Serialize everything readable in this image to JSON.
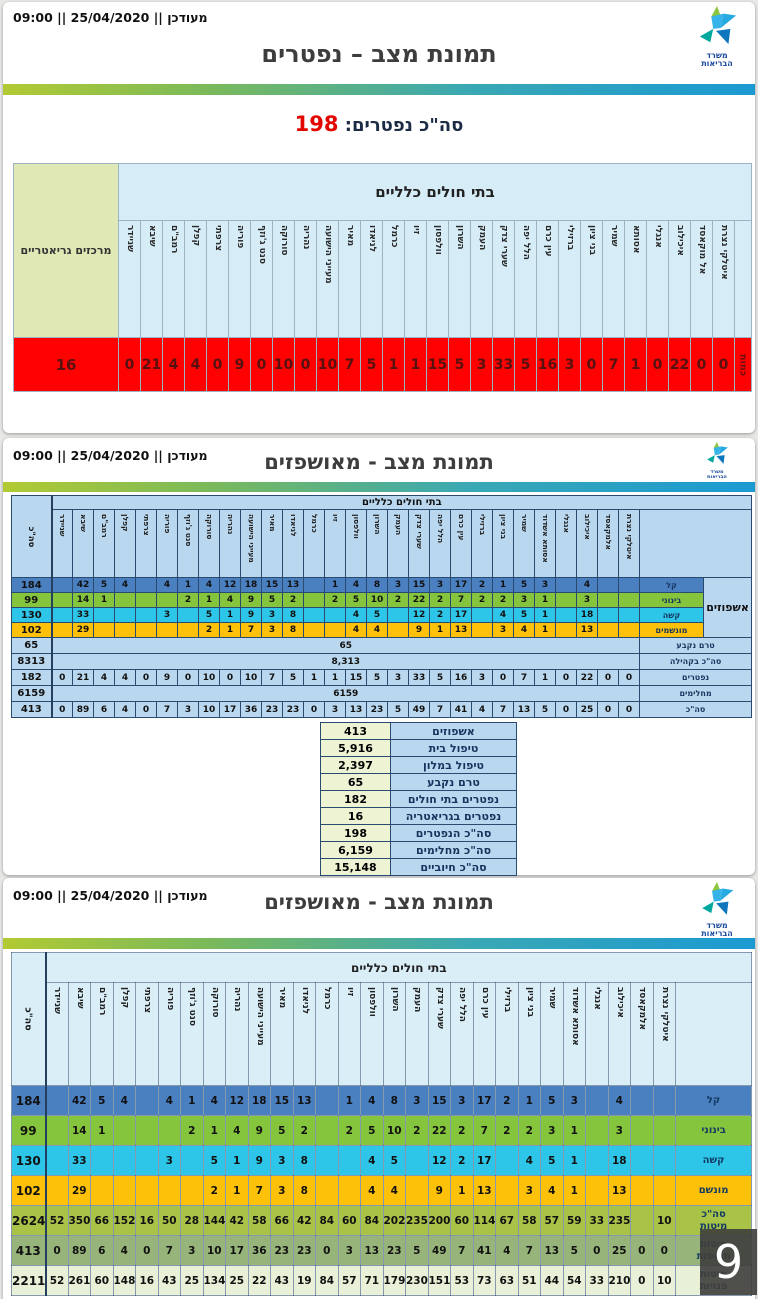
{
  "common": {
    "timestamp": "מעודכן || 25/04/2020 || 09:00",
    "group_header": "בתי חולים כלליים",
    "ministry_line1": "משרד",
    "ministry_line2": "הבריאות"
  },
  "colors": {
    "accent_red": "#e10600",
    "mild": "#4a7fc0",
    "moderate": "#85c43d",
    "severe": "#2ec6e8",
    "ventilated": "#fec10a",
    "base": "#b9d7ee",
    "base3": "#d9eef6",
    "beds_total": "#a9c248",
    "beds_used": "#97b47a",
    "beds_free": "#e8f0d8",
    "deaths_row": "#fe0100"
  },
  "slide1": {
    "title": "תמונת מצב – נפטרים",
    "total_label": "סה\"כ נפטרים:",
    "total_value": "198",
    "table": {
      "left_header": "מרכזים גריאטריים",
      "left_value": "16",
      "row_label": "כמות",
      "hospitals": [
        "שניידר",
        "שיבא",
        "רמב\"ם",
        "קפלן",
        "צרפתי",
        "פוריה",
        "סנט ג'וזף",
        "סורוקה",
        "נהריה",
        "מעייני הישועה",
        "מאיר",
        "לניאדו",
        "כרמל",
        "זיו",
        "וולפסון",
        "השרון",
        "העמק",
        "שערי צדק",
        "הלל יפה",
        "עין כרם",
        "ברזילי",
        "בני ציון",
        "שמיר",
        "אסותא",
        "אנגלי",
        "איכילוב",
        "אל מוקאסד",
        "איטלקי נצרת"
      ],
      "values": [
        "0",
        "21",
        "4",
        "4",
        "0",
        "9",
        "0",
        "10",
        "0",
        "10",
        "7",
        "5",
        "1",
        "1",
        "15",
        "5",
        "3",
        "33",
        "5",
        "16",
        "3",
        "0",
        "7",
        "1",
        "0",
        "22",
        "0",
        "0"
      ]
    }
  },
  "slide2": {
    "title": "תמונת מצב - מאושפזים",
    "table": {
      "left_header": "סה\"כ",
      "group_label": "אשפוזים",
      "hospitals": [
        "שניידר",
        "שיבא",
        "רמב\"ם",
        "קפלן",
        "צרפתי",
        "פוריה",
        "סנט ג'וזף",
        "סורוקה",
        "נהריה",
        "מעייני הישועה",
        "מאיר",
        "לניאדו",
        "כרמל",
        "זיו",
        "וולפסון",
        "השרון",
        "העמק",
        "שערי צדק",
        "הלל יפה",
        "עין כרם",
        "ברזילי",
        "בני ציון",
        "שמיר",
        "אסותא אשדוד",
        "אנגלי",
        "איכילוב",
        "אלמקאסד",
        "איטלקי נצרת"
      ],
      "rows": [
        {
          "label": "קל",
          "total": "184",
          "type": "cells",
          "color": "mild",
          "cells": [
            "",
            "42",
            "5",
            "4",
            "",
            "4",
            "1",
            "4",
            "12",
            "18",
            "15",
            "13",
            "",
            "1",
            "4",
            "8",
            "3",
            "15",
            "3",
            "17",
            "2",
            "1",
            "5",
            "3",
            "",
            "4",
            "",
            ""
          ]
        },
        {
          "label": "בינוני",
          "total": "99",
          "type": "cells",
          "color": "moderate",
          "cells": [
            "",
            "14",
            "1",
            "",
            "",
            "",
            "2",
            "1",
            "4",
            "9",
            "5",
            "2",
            "",
            "2",
            "5",
            "10",
            "2",
            "22",
            "2",
            "7",
            "2",
            "2",
            "3",
            "1",
            "",
            "3",
            "",
            ""
          ]
        },
        {
          "label": "קשה",
          "total": "130",
          "type": "cells",
          "color": "severe",
          "cells": [
            "",
            "33",
            "",
            "",
            "",
            "3",
            "",
            "5",
            "1",
            "9",
            "3",
            "8",
            "",
            "",
            "4",
            "5",
            "",
            "12",
            "2",
            "17",
            "",
            "4",
            "5",
            "1",
            "",
            "18",
            "",
            ""
          ]
        },
        {
          "label": "מונשמים",
          "total": "102",
          "type": "cells",
          "color": "ventilated",
          "cells": [
            "",
            "29",
            "",
            "",
            "",
            "",
            "",
            "2",
            "1",
            "7",
            "3",
            "8",
            "",
            "",
            "4",
            "4",
            "",
            "9",
            "1",
            "13",
            "",
            "3",
            "4",
            "1",
            "",
            "13",
            "",
            ""
          ]
        },
        {
          "label": "טרם נקבע",
          "total": "65",
          "type": "merged",
          "merged_value": "65",
          "color": "base"
        },
        {
          "label": "סה\"כ בקהילה",
          "total": "8313",
          "type": "merged",
          "merged_value": "8,313",
          "color": "base"
        },
        {
          "label": "נפטרים",
          "total": "182",
          "type": "cells",
          "color": "base",
          "cells": [
            "0",
            "21",
            "4",
            "4",
            "0",
            "9",
            "0",
            "10",
            "0",
            "10",
            "7",
            "5",
            "1",
            "1",
            "15",
            "5",
            "3",
            "33",
            "5",
            "16",
            "3",
            "0",
            "7",
            "1",
            "0",
            "22",
            "0",
            "0"
          ]
        },
        {
          "label": "מחלימים",
          "total": "6159",
          "type": "merged",
          "merged_value": "6159",
          "color": "base"
        },
        {
          "label": "סה\"כ",
          "total": "413",
          "type": "cells",
          "color": "base",
          "cells": [
            "0",
            "89",
            "6",
            "4",
            "0",
            "7",
            "3",
            "10",
            "17",
            "36",
            "23",
            "23",
            "0",
            "3",
            "13",
            "23",
            "5",
            "49",
            "7",
            "41",
            "4",
            "7",
            "13",
            "5",
            "0",
            "25",
            "0",
            "0"
          ]
        }
      ]
    },
    "summary": {
      "rows": [
        {
          "value": "413",
          "label": "אשפוזים"
        },
        {
          "value": "5,916",
          "label": "טיפול בית"
        },
        {
          "value": "2,397",
          "label": "טיפול במלון"
        },
        {
          "value": "65",
          "label": "טרם נקבע"
        },
        {
          "value": "182",
          "label": "נפטרים בתי חולים"
        },
        {
          "value": "16",
          "label": "נפטרים בגריאטריה"
        },
        {
          "value": "198",
          "label": "סה\"כ הנפטרים"
        },
        {
          "value": "6,159",
          "label": "סה\"כ מחלימים"
        },
        {
          "value": "15,148",
          "label": "סה\"כ חיוביים"
        }
      ]
    }
  },
  "slide3": {
    "title": "תמונת מצב - מאושפזים",
    "page_number": "9",
    "table": {
      "left_header": "סה\"כ",
      "hospitals": [
        "שניידר",
        "שיבא",
        "רמב\"ם",
        "קפלן",
        "צרפתי",
        "פוריה",
        "סנט ג'וזף",
        "סורוקה",
        "נהריה",
        "מעייני הישועה",
        "מאיר",
        "לניאדו",
        "כרמל",
        "זיו",
        "וולפסון",
        "השרון",
        "העמק",
        "שערי צדק",
        "הלל יפה",
        "עין כרם",
        "ברזילי",
        "בני ציון",
        "שמיר",
        "אסותא אשדוד",
        "אנגלי",
        "איכילוב",
        "אלמקאסד",
        "איטלקי נצרת"
      ],
      "rows": [
        {
          "label": "קל",
          "total": "184",
          "color": "mild",
          "cells": [
            "",
            "42",
            "5",
            "4",
            "",
            "4",
            "1",
            "4",
            "12",
            "18",
            "15",
            "13",
            "",
            "1",
            "4",
            "8",
            "3",
            "15",
            "3",
            "17",
            "2",
            "1",
            "5",
            "3",
            "",
            "4",
            "",
            ""
          ]
        },
        {
          "label": "בינוני",
          "total": "99",
          "color": "moderate",
          "cells": [
            "",
            "14",
            "1",
            "",
            "",
            "",
            "2",
            "1",
            "4",
            "9",
            "5",
            "2",
            "",
            "2",
            "5",
            "10",
            "2",
            "22",
            "2",
            "7",
            "2",
            "2",
            "3",
            "1",
            "",
            "3",
            "",
            ""
          ]
        },
        {
          "label": "קשה",
          "total": "130",
          "color": "severe",
          "cells": [
            "",
            "33",
            "",
            "",
            "",
            "3",
            "",
            "5",
            "1",
            "9",
            "3",
            "8",
            "",
            "",
            "4",
            "5",
            "",
            "12",
            "2",
            "17",
            "",
            "4",
            "5",
            "1",
            "",
            "18",
            "",
            ""
          ]
        },
        {
          "label": "מונשם",
          "total": "102",
          "color": "ventilated",
          "cells": [
            "",
            "29",
            "",
            "",
            "",
            "",
            "",
            "2",
            "1",
            "7",
            "3",
            "8",
            "",
            "",
            "4",
            "4",
            "",
            "9",
            "1",
            "13",
            "",
            "3",
            "4",
            "1",
            "",
            "13",
            "",
            ""
          ]
        },
        {
          "label": "סה\"כ\nמיטות",
          "total": "2624",
          "color": "beds_total",
          "cells": [
            "52",
            "350",
            "66",
            "152",
            "16",
            "50",
            "28",
            "144",
            "42",
            "58",
            "66",
            "42",
            "84",
            "60",
            "84",
            "202",
            "235",
            "200",
            "60",
            "114",
            "67",
            "58",
            "57",
            "59",
            "33",
            "235",
            "",
            "10"
          ]
        },
        {
          "label": "מיטות\nתפוסות",
          "total": "413",
          "color": "beds_used",
          "cells": [
            "0",
            "89",
            "6",
            "4",
            "0",
            "7",
            "3",
            "10",
            "17",
            "36",
            "23",
            "23",
            "0",
            "3",
            "13",
            "23",
            "5",
            "49",
            "7",
            "41",
            "4",
            "7",
            "13",
            "5",
            "0",
            "25",
            "0",
            "0"
          ]
        },
        {
          "label": "מיטות\nפנויות",
          "total": "2211",
          "color": "beds_free",
          "cells": [
            "52",
            "261",
            "60",
            "148",
            "16",
            "43",
            "25",
            "134",
            "25",
            "22",
            "43",
            "19",
            "84",
            "57",
            "71",
            "179",
            "230",
            "151",
            "53",
            "73",
            "63",
            "51",
            "44",
            "54",
            "33",
            "210",
            "0",
            "10"
          ]
        }
      ]
    }
  }
}
